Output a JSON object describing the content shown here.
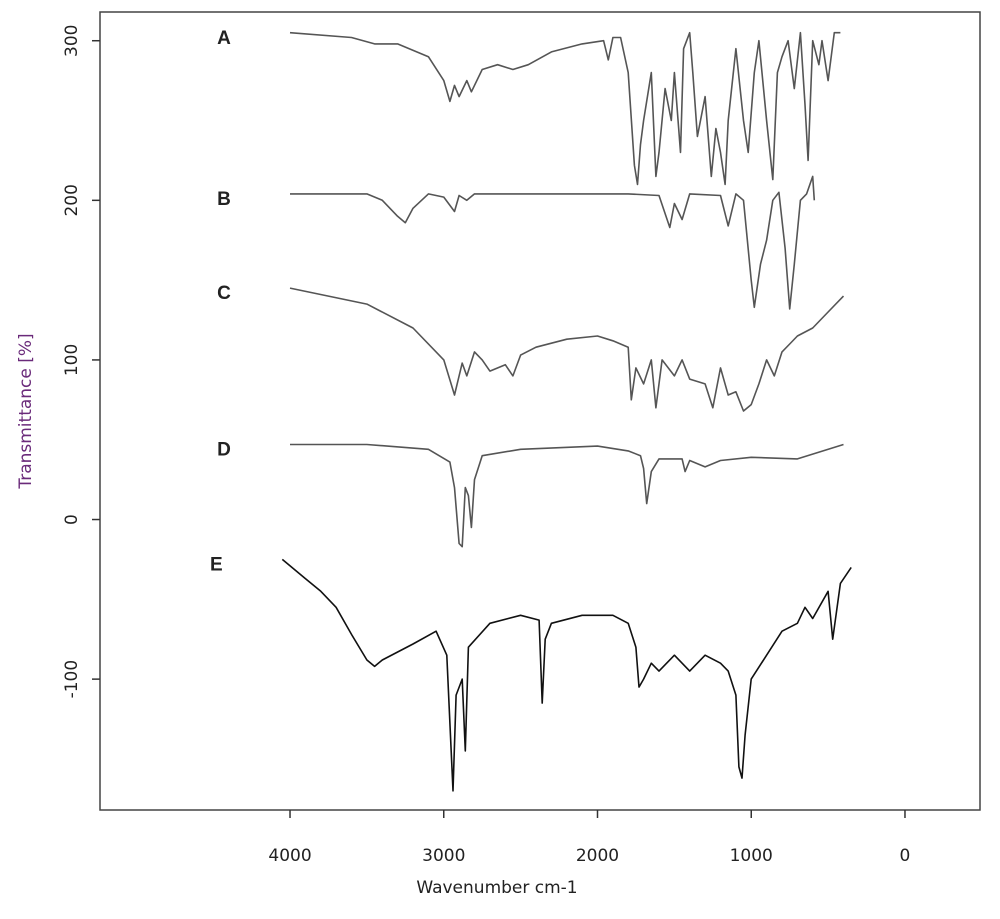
{
  "chart_data": {
    "type": "line",
    "xlabel": "Wavenumber cm-1",
    "ylabel": "Transmittance [%]",
    "xlim": [
      5236,
      -488
    ],
    "ylim": [
      -182,
      318
    ],
    "xticks": [
      4000,
      3000,
      2000,
      1000,
      0
    ],
    "yticks": [
      300,
      200,
      100,
      0,
      -100
    ],
    "series": [
      {
        "name": "A",
        "color": "#555555",
        "x": [
          4000,
          3600,
          3450,
          3300,
          3100,
          3000,
          2960,
          2930,
          2900,
          2850,
          2820,
          2750,
          2650,
          2550,
          2450,
          2300,
          2100,
          1960,
          1930,
          1900,
          1850,
          1800,
          1760,
          1740,
          1720,
          1700,
          1650,
          1620,
          1600,
          1560,
          1520,
          1500,
          1460,
          1440,
          1400,
          1380,
          1350,
          1300,
          1260,
          1230,
          1200,
          1170,
          1150,
          1100,
          1050,
          1020,
          980,
          950,
          900,
          860,
          830,
          800,
          760,
          720,
          680,
          650,
          630,
          600,
          560,
          540,
          500,
          460,
          420
        ],
        "values": [
          305,
          302,
          298,
          298,
          290,
          275,
          262,
          272,
          265,
          275,
          268,
          282,
          285,
          282,
          285,
          293,
          298,
          300,
          288,
          302,
          302,
          280,
          222,
          210,
          235,
          250,
          280,
          215,
          230,
          270,
          250,
          280,
          230,
          295,
          305,
          280,
          240,
          265,
          215,
          245,
          230,
          210,
          250,
          295,
          250,
          230,
          280,
          300,
          250,
          213,
          280,
          290,
          300,
          270,
          305,
          260,
          225,
          300,
          285,
          300,
          275,
          305,
          305
        ]
      },
      {
        "name": "B",
        "color": "#555555",
        "x": [
          4000,
          3500,
          3400,
          3300,
          3250,
          3200,
          3100,
          3000,
          2930,
          2900,
          2850,
          2800,
          2000,
          1800,
          1600,
          1530,
          1500,
          1450,
          1400,
          1200,
          1150,
          1100,
          1050,
          1000,
          980,
          940,
          900,
          860,
          820,
          780,
          750,
          720,
          680,
          640,
          600,
          590
        ],
        "values": [
          204,
          204,
          200,
          190,
          186,
          195,
          204,
          202,
          193,
          203,
          200,
          204,
          204,
          204,
          203,
          183,
          198,
          188,
          204,
          203,
          184,
          204,
          200,
          150,
          133,
          160,
          175,
          200,
          205,
          170,
          132,
          160,
          200,
          204,
          215,
          200
        ]
      },
      {
        "name": "C",
        "color": "#555555",
        "x": [
          4000,
          3500,
          3200,
          3000,
          2930,
          2880,
          2850,
          2800,
          2750,
          2700,
          2600,
          2550,
          2500,
          2400,
          2200,
          2000,
          1900,
          1800,
          1780,
          1750,
          1700,
          1650,
          1620,
          1580,
          1500,
          1450,
          1400,
          1300,
          1250,
          1200,
          1150,
          1100,
          1050,
          1000,
          950,
          900,
          850,
          800,
          750,
          700,
          600,
          500,
          400
        ],
        "values": [
          145,
          135,
          120,
          100,
          78,
          98,
          90,
          105,
          100,
          93,
          97,
          90,
          103,
          108,
          113,
          115,
          112,
          108,
          75,
          95,
          85,
          100,
          70,
          100,
          90,
          100,
          88,
          85,
          70,
          95,
          78,
          80,
          68,
          72,
          85,
          100,
          90,
          105,
          110,
          115,
          120,
          130,
          140
        ]
      },
      {
        "name": "D",
        "color": "#555555",
        "x": [
          4000,
          3500,
          3100,
          2960,
          2930,
          2900,
          2880,
          2860,
          2840,
          2820,
          2800,
          2750,
          2500,
          2000,
          1800,
          1720,
          1700,
          1680,
          1650,
          1600,
          1450,
          1430,
          1400,
          1300,
          1200,
          1000,
          700,
          400
        ],
        "values": [
          47,
          47,
          44,
          36,
          20,
          -15,
          -17,
          20,
          15,
          -5,
          25,
          40,
          44,
          46,
          43,
          40,
          32,
          10,
          30,
          38,
          38,
          30,
          37,
          33,
          37,
          39,
          38,
          47
        ]
      },
      {
        "name": "E",
        "color": "#111111",
        "x": [
          4050,
          3900,
          3800,
          3700,
          3600,
          3500,
          3450,
          3400,
          3200,
          3050,
          2980,
          2940,
          2920,
          2880,
          2860,
          2840,
          2700,
          2500,
          2380,
          2360,
          2340,
          2300,
          2100,
          1900,
          1800,
          1750,
          1730,
          1700,
          1650,
          1600,
          1500,
          1400,
          1300,
          1200,
          1150,
          1100,
          1080,
          1060,
          1040,
          1000,
          900,
          800,
          700,
          650,
          600,
          500,
          470,
          420,
          350
        ],
        "values": [
          -25,
          -37,
          -45,
          -55,
          -72,
          -88,
          -92,
          -88,
          -78,
          -70,
          -85,
          -170,
          -110,
          -100,
          -145,
          -80,
          -65,
          -60,
          -63,
          -115,
          -75,
          -65,
          -60,
          -60,
          -65,
          -80,
          -105,
          -100,
          -90,
          -95,
          -85,
          -95,
          -85,
          -90,
          -95,
          -110,
          -155,
          -162,
          -135,
          -100,
          -85,
          -70,
          -65,
          -55,
          -62,
          -45,
          -75,
          -40,
          -30
        ]
      }
    ]
  }
}
